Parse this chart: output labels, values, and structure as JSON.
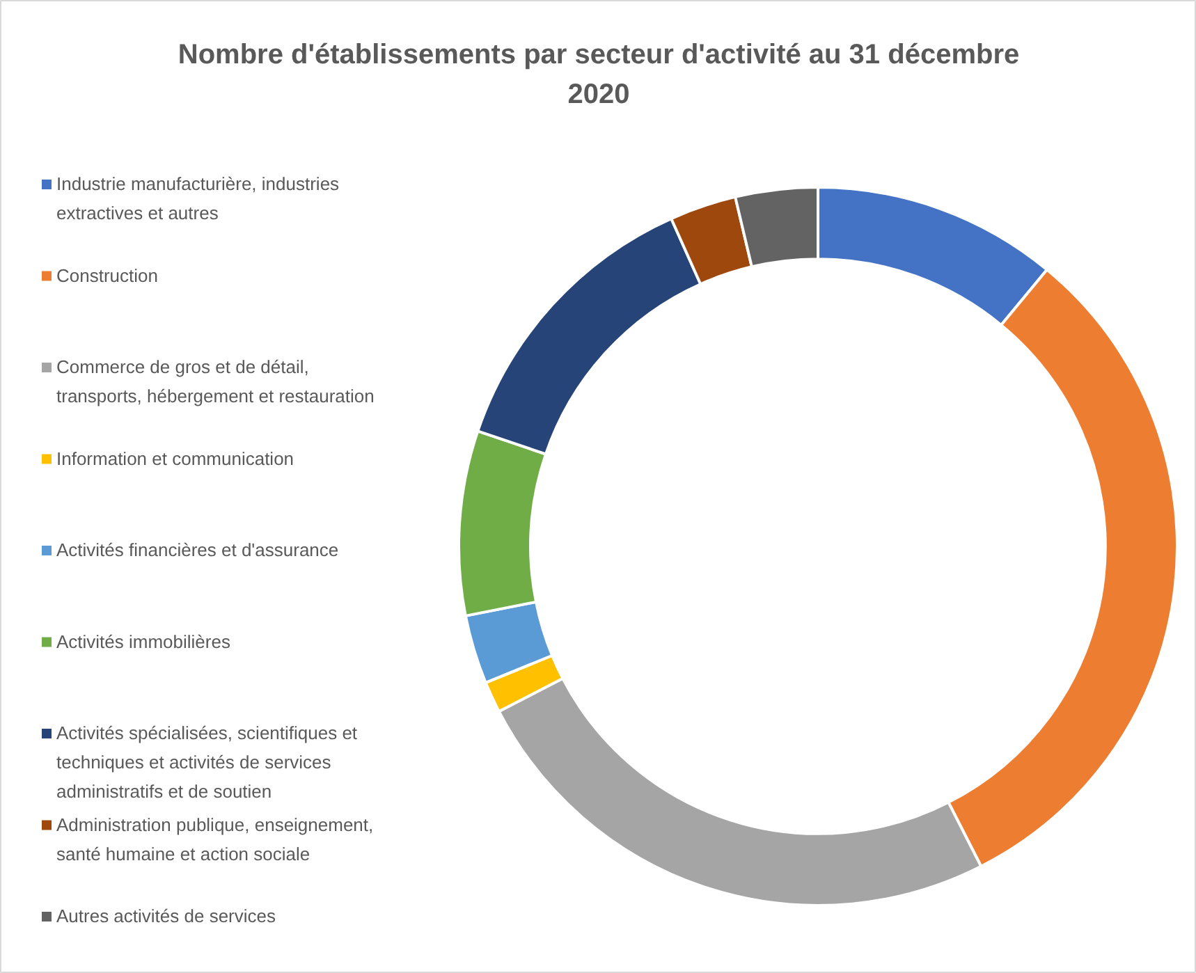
{
  "chart_data": {
    "type": "donut",
    "title": "Nombre d'établissements par secteur d'activité au 31 décembre 2020",
    "categories": [
      "Industrie manufacturière, industries extractives et autres",
      "Construction",
      "Commerce de gros et de détail, transports, hébergement et restauration",
      "Information et communication",
      "Activités financières et d'assurance",
      "Activités immobilières",
      "Activités spécialisées, scientifiques et techniques et activités de services administratifs et de soutien",
      "Administration publique, enseignement, santé humaine et action sociale",
      "Autres activités de services"
    ],
    "values": [
      11,
      31.5,
      24.9,
      1.4,
      3.1,
      8.3,
      13.1,
      3,
      3.7
    ],
    "colors": [
      "#4472c4",
      "#ed7d31",
      "#a5a5a5",
      "#ffc000",
      "#5b9bd5",
      "#70ad47",
      "#264478",
      "#9e480e",
      "#636363"
    ],
    "legend": "left"
  }
}
